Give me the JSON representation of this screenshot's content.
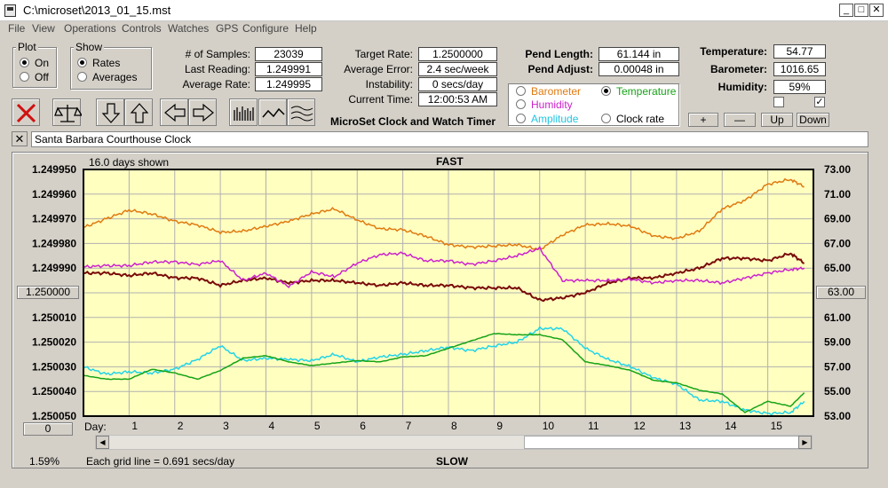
{
  "window": {
    "title": "C:\\microset\\2013_01_15.mst"
  },
  "menu": [
    "File",
    "View",
    "Operations",
    "Controls",
    "Watches",
    "GPS",
    "Configure",
    "Help"
  ],
  "plot_group": {
    "title": "Plot",
    "on": "On",
    "off": "Off",
    "selected": "On"
  },
  "show_group": {
    "title": "Show",
    "rates": "Rates",
    "averages": "Averages",
    "selected": "Rates"
  },
  "stats": {
    "samples_label": "# of Samples:",
    "samples": "23039",
    "last_label": "Last Reading:",
    "last": "1.249991",
    "avg_label": "Average Rate:",
    "avg": "1.249995",
    "target_label": "Target Rate:",
    "target": "1.2500000",
    "avgerr_label": "Average Error:",
    "avgerr": "2.4 sec/week",
    "instab_label": "Instability:",
    "instab": "0 secs/day",
    "time_label": "Current Time:",
    "time": "12:00:53 AM",
    "app_name": "MicroSet Clock and Watch Timer",
    "pendlen_label": "Pend Length:",
    "pendlen": "61.144 in",
    "pendadj_label": "Pend Adjust:",
    "pendadj": "0.00048 in",
    "temp_label": "Temperature:",
    "temp": "54.77",
    "baro_label": "Barometer:",
    "baro": "1016.65",
    "hum_label": "Humidity:",
    "hum": "59%"
  },
  "sensors": {
    "barometer": "Barometer",
    "temperature": "Temperature",
    "humidity": "Humidity",
    "amplitude": "Amplitude",
    "clockrate": "Clock rate",
    "selected": "Temperature",
    "colors": {
      "barometer": "#e07a10",
      "temperature": "#17a317",
      "humidity": "#cc22cc",
      "amplitude": "#22d4e8",
      "clockrate": "#000000"
    }
  },
  "buttons": {
    "plus": "+",
    "minus": "—",
    "up": "Up",
    "down": "Down"
  },
  "toolbar_icons": [
    "delete-icon",
    "balance-scale-icon",
    "arrow-down-icon",
    "arrow-up-icon",
    "arrow-left-icon",
    "arrow-right-icon",
    "bars-icon",
    "wave-icon",
    "multi-wave-icon"
  ],
  "watch_name": "Santa Barbara Courthouse Clock",
  "chart_header": {
    "days_shown": "16.0 days shown",
    "top": "FAST",
    "bottom": "SLOW",
    "grid_note": "Each grid line = 0.691 secs/day",
    "pct": "1.59%",
    "center_left": "1.250000",
    "center_right": "63.00",
    "day_left": "0",
    "day_label": "Day:"
  },
  "chart_data": {
    "type": "line",
    "x_label": "Day",
    "x_ticks": [
      "1",
      "2",
      "3",
      "4",
      "5",
      "6",
      "7",
      "8",
      "9",
      "10",
      "11",
      "12",
      "13",
      "14",
      "15"
    ],
    "xlim": [
      0,
      16
    ],
    "y_left_ticks": [
      "1.249950",
      "1.249960",
      "1.249970",
      "1.249980",
      "1.249990",
      "1.250000",
      "1.250010",
      "1.250020",
      "1.250030",
      "1.250040",
      "1.250050"
    ],
    "ylim_left": [
      1.24995,
      1.25005
    ],
    "y_left_inverted": true,
    "y_right_ticks": [
      "73.00",
      "71.00",
      "69.00",
      "67.00",
      "65.00",
      "",
      "61.00",
      "59.00",
      "57.00",
      "55.00",
      "53.00"
    ],
    "ylim_right": [
      53,
      73
    ],
    "grid": true,
    "series": [
      {
        "name": "Barometer",
        "color": "#e07a10",
        "x": [
          0,
          0.5,
          1,
          1.5,
          2,
          2.5,
          3,
          3.5,
          4,
          4.5,
          5,
          5.5,
          6,
          6.5,
          7,
          7.5,
          8,
          8.5,
          9,
          9.5,
          10,
          10.5,
          11,
          11.5,
          12,
          12.5,
          13,
          13.5,
          14,
          14.5,
          15,
          15.5,
          15.8
        ],
        "y": [
          68.3,
          69.0,
          69.7,
          69.4,
          68.8,
          68.5,
          67.9,
          68.0,
          68.4,
          68.8,
          69.4,
          69.8,
          68.9,
          68.2,
          68.1,
          67.6,
          66.9,
          66.7,
          66.8,
          66.9,
          66.5,
          67.7,
          68.5,
          68.6,
          68.4,
          67.6,
          67.4,
          68.0,
          69.8,
          70.5,
          71.8,
          72.2,
          71.6
        ]
      },
      {
        "name": "Clock rate",
        "color": "#7a0a0a",
        "x": [
          0,
          0.5,
          1,
          1.5,
          2,
          2.5,
          3,
          3.5,
          4,
          4.5,
          5,
          5.5,
          6,
          6.5,
          7,
          7.5,
          8,
          8.5,
          9,
          9.5,
          10,
          10.5,
          11,
          11.5,
          12,
          12.5,
          13,
          13.5,
          14,
          14.5,
          15,
          15.5,
          15.8
        ],
        "y": [
          1.249992,
          1.249992,
          1.249993,
          1.249992,
          1.249994,
          1.249994,
          1.249997,
          1.249995,
          1.249994,
          1.249996,
          1.249995,
          1.249995,
          1.249996,
          1.249997,
          1.249996,
          1.249997,
          1.249997,
          1.249998,
          1.249998,
          1.249998,
          1.250003,
          1.250002,
          1.25,
          1.249996,
          1.249994,
          1.249994,
          1.249992,
          1.24999,
          1.249986,
          1.249986,
          1.249987,
          1.249984,
          1.249988
        ]
      },
      {
        "name": "Humidity",
        "color": "#cc22cc",
        "x": [
          0,
          0.5,
          1,
          1.5,
          2,
          2.5,
          3,
          3.5,
          4,
          4.5,
          5,
          5.5,
          6,
          6.5,
          7,
          7.5,
          8,
          8.5,
          9,
          9.5,
          10,
          10.5,
          11,
          11.5,
          12,
          12.5,
          13,
          13.5,
          14,
          14.5,
          15,
          15.5,
          15.8
        ],
        "y": [
          65.1,
          65.2,
          65.2,
          65.5,
          65.5,
          65.3,
          65.6,
          64.0,
          64.6,
          63.5,
          64.7,
          64.3,
          65.4,
          66.1,
          66.2,
          65.6,
          65.6,
          65.3,
          65.6,
          66.0,
          66.6,
          64.0,
          64.0,
          64.0,
          64.1,
          63.8,
          64.0,
          64.0,
          63.8,
          64.2,
          64.6,
          64.9,
          65.0
        ]
      },
      {
        "name": "Amplitude",
        "color": "#22d4e8",
        "x": [
          0,
          0.5,
          1,
          1.5,
          2,
          2.5,
          3,
          3.5,
          4,
          4.5,
          5,
          5.5,
          6,
          6.5,
          7,
          7.5,
          8,
          8.5,
          9,
          9.5,
          10,
          10.5,
          11,
          11.5,
          12,
          12.5,
          13,
          13.5,
          14,
          14.5,
          15,
          15.5,
          15.8
        ],
        "y": [
          57.0,
          56.4,
          56.6,
          56.5,
          56.8,
          57.6,
          58.7,
          57.5,
          57.7,
          57.6,
          57.5,
          58.0,
          57.4,
          57.8,
          58.0,
          58.3,
          58.6,
          58.3,
          58.7,
          59.0,
          60.1,
          60.1,
          58.5,
          57.6,
          57.0,
          56.1,
          55.6,
          54.3,
          54.2,
          53.5,
          53.2,
          53.3,
          54.2
        ]
      },
      {
        "name": "Temperature",
        "color": "#17a317",
        "x": [
          0,
          0.5,
          1,
          1.5,
          2,
          2.5,
          3,
          3.5,
          4,
          4.5,
          5,
          5.5,
          6,
          6.5,
          7,
          7.5,
          8,
          8.5,
          9,
          9.5,
          10,
          10.5,
          11,
          11.5,
          12,
          12.5,
          13,
          13.5,
          14,
          14.5,
          15,
          15.5,
          15.8
        ],
        "y": [
          56.3,
          56.0,
          56.0,
          56.8,
          56.5,
          56.0,
          56.7,
          57.7,
          57.9,
          57.4,
          57.1,
          57.3,
          57.5,
          57.4,
          57.8,
          57.9,
          58.5,
          59.1,
          59.7,
          59.6,
          59.6,
          59.2,
          57.4,
          57.1,
          56.7,
          55.9,
          55.7,
          55.1,
          54.8,
          53.3,
          54.2,
          53.8,
          54.9
        ]
      }
    ]
  }
}
